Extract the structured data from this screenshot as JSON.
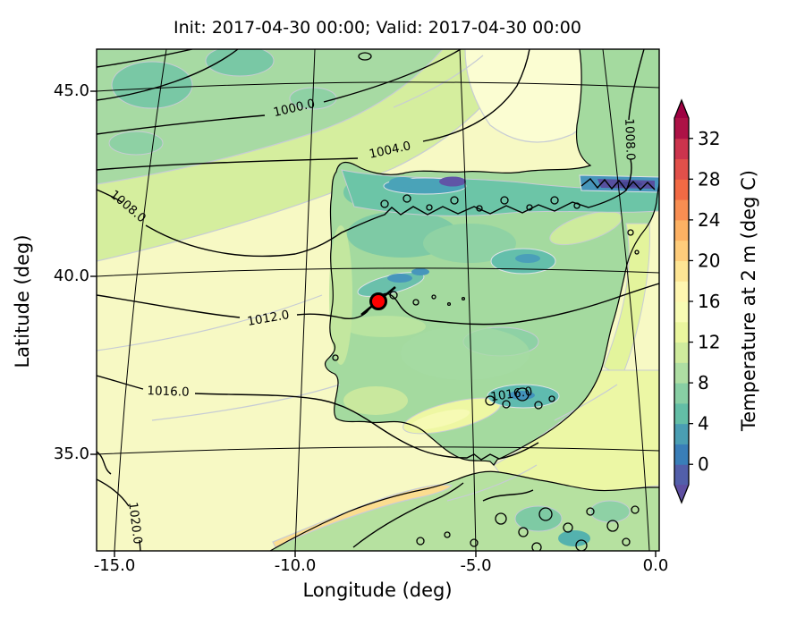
{
  "figure": {
    "title": "Init: 2017-04-30 00:00; Valid: 2017-04-30 00:00",
    "x_axis": {
      "label": "Longitude (deg)",
      "tick_labels": [
        "-15.0",
        "-10.0",
        "-5.0",
        "0.0"
      ]
    },
    "y_axis": {
      "label": "Latitude (deg)",
      "tick_labels": [
        "45.0",
        "40.0",
        "35.0"
      ]
    },
    "colorbar": {
      "label": "Temperature at 2 m (deg C)",
      "tick_labels": [
        "0",
        "4",
        "8",
        "12",
        "16",
        "20",
        "24",
        "28",
        "32"
      ]
    }
  },
  "chart_data": {
    "type": "heatmap",
    "subtype": "filled-contour-weather-map",
    "title": "Init: 2017-04-30 00:00; Valid: 2017-04-30 00:00",
    "xlabel": "Longitude (deg)",
    "ylabel": "Latitude (deg)",
    "xlim": [
      -15.5,
      0.1
    ],
    "ylim": [
      32.5,
      46.2
    ],
    "x_ticks": [
      -15.0,
      -10.0,
      -5.0,
      0.0
    ],
    "y_ticks": [
      35.0,
      40.0,
      45.0
    ],
    "grid": true,
    "fill_variable": "Temperature at 2 m (deg C)",
    "fill_levels": [
      -2,
      0,
      2,
      4,
      6,
      8,
      10,
      12,
      14,
      16,
      18,
      20,
      22,
      24,
      26,
      28,
      30,
      32,
      34
    ],
    "fill_colors": [
      "#525faa",
      "#397eb8",
      "#4a9eb3",
      "#63bea6",
      "#88cfa4",
      "#aedea3",
      "#cfeb9d",
      "#eaf69e",
      "#f8fcb4",
      "#fff6b0",
      "#fee594",
      "#fecc7b",
      "#fdb163",
      "#f88e52",
      "#f26a44",
      "#e1504a",
      "#cc344d",
      "#ad1246"
    ],
    "colorbar": {
      "label": "Temperature at 2 m (deg C)",
      "ticks": [
        0,
        4,
        8,
        12,
        16,
        20,
        24,
        28,
        32
      ],
      "extend_under_color": "#5e4fa2",
      "extend_over_color": "#9e0142",
      "orientation": "vertical",
      "position": "right"
    },
    "contour_labels": [
      {
        "text": "1000.0",
        "lon": -10.0,
        "lat": 44.5
      },
      {
        "text": "1004.0",
        "lon": -7.3,
        "lat": 43.4
      },
      {
        "text": "1008.0",
        "lon": -14.6,
        "lat": 41.8
      },
      {
        "text": "1008.0",
        "lon": -0.7,
        "lat": 43.7
      },
      {
        "text": "1012.0",
        "lon": -10.7,
        "lat": 38.8
      },
      {
        "text": "1016.0",
        "lon": -13.5,
        "lat": 36.8
      },
      {
        "text": "1016.0",
        "lon": -4.1,
        "lat": 36.7
      },
      {
        "text": "1020.0",
        "lon": -14.4,
        "lat": 33.2
      }
    ],
    "station_marker": {
      "shape": "circle",
      "color": "#ff0000",
      "edge_color": "#000000",
      "lon": -7.7,
      "lat": 39.4
    }
  }
}
